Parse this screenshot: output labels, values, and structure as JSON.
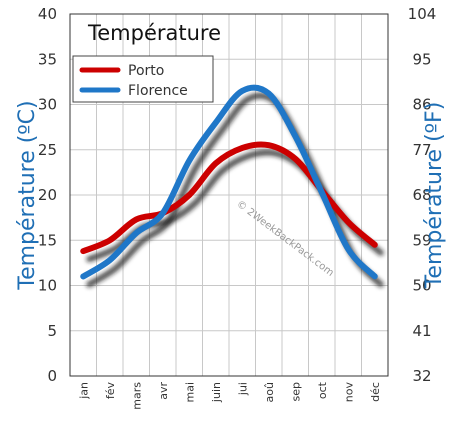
{
  "chart_data": {
    "type": "line",
    "title": "Température",
    "ylabel_left": "Température  (ºC)",
    "ylabel_right": "Température  (ºF)",
    "categories": [
      "jan",
      "fév",
      "mars",
      "avr",
      "mai",
      "juin",
      "jui",
      "aoû",
      "sep",
      "oct",
      "nov",
      "déc"
    ],
    "ylim": [
      0,
      40
    ],
    "y_ticks_left": [
      "0",
      "5",
      "10",
      "15",
      "20",
      "25",
      "30",
      "35",
      "40"
    ],
    "y_ticks_right": [
      "32",
      "41",
      "50",
      "59",
      "68",
      "77",
      "86",
      "95",
      "104"
    ],
    "series": [
      {
        "name": "Porto",
        "color": "#cc0000",
        "values": [
          13.8,
          15,
          17.3,
          18,
          20,
          23.5,
          25.2,
          25.5,
          24,
          20.5,
          17,
          14.5
        ]
      },
      {
        "name": "Florence",
        "color": "#1f77c8",
        "values": [
          11,
          12.8,
          15.8,
          18,
          23.8,
          28,
          31.5,
          31.2,
          26.5,
          20.3,
          14,
          11
        ]
      }
    ],
    "grid": true,
    "legend": "top-left",
    "watermark": "© 2WeekBackPack.com"
  }
}
